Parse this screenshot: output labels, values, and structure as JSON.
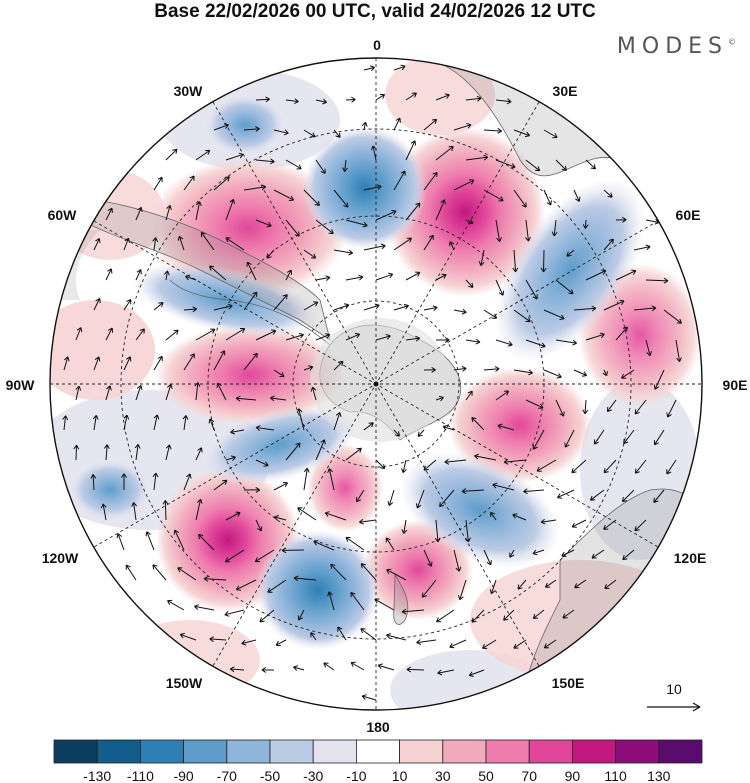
{
  "header": {
    "title": "Base 22/02/2026 00 UTC, valid 24/02/2026 12 UTC",
    "brand": "MODES",
    "brand_mark": "©"
  },
  "map": {
    "projection": "South polar stereographic",
    "longitude_labels": {
      "top": "0",
      "top_right": "30E",
      "upper_right": "60E",
      "right": "90E",
      "lower_right": "120E",
      "bottom_right": "150E",
      "bottom": "180",
      "bottom_left": "150W",
      "lower_left": "120W",
      "left": "90W",
      "upper_left": "60W",
      "top_left": "30W"
    },
    "field_features": [
      {
        "sign": "positive",
        "value": 90,
        "near": "30E"
      },
      {
        "sign": "positive",
        "value": 70,
        "near": "60W"
      },
      {
        "sign": "positive",
        "value": 70,
        "near": "90W"
      },
      {
        "sign": "positive",
        "value": 70,
        "near": "120W"
      },
      {
        "sign": "positive",
        "value": 50,
        "near": "75E"
      },
      {
        "sign": "positive",
        "value": 70,
        "near": "105E"
      },
      {
        "sign": "positive",
        "value": 70,
        "near": "165E"
      },
      {
        "sign": "negative",
        "value": -70,
        "near": "0"
      },
      {
        "sign": "negative",
        "value": -50,
        "near": "45E"
      },
      {
        "sign": "negative",
        "value": -50,
        "near": "150W"
      },
      {
        "sign": "negative",
        "value": -50,
        "near": "135E"
      }
    ]
  },
  "vector_key": {
    "label": "10"
  },
  "colorbar": {
    "tick_labels": [
      "-130",
      "-110",
      "-90",
      "-70",
      "-50",
      "-30",
      "-10",
      "10",
      "30",
      "50",
      "70",
      "90",
      "110",
      "130"
    ],
    "colors": [
      "#0b3d5e",
      "#135d8c",
      "#2f7fb6",
      "#5e9dcb",
      "#8fb5da",
      "#bccbe5",
      "#e3e3f0",
      "#ffffff",
      "#f6d3d3",
      "#f2a9bd",
      "#ee7cae",
      "#e0479a",
      "#c2187f",
      "#8e0c7a",
      "#5a0c6e"
    ]
  }
}
